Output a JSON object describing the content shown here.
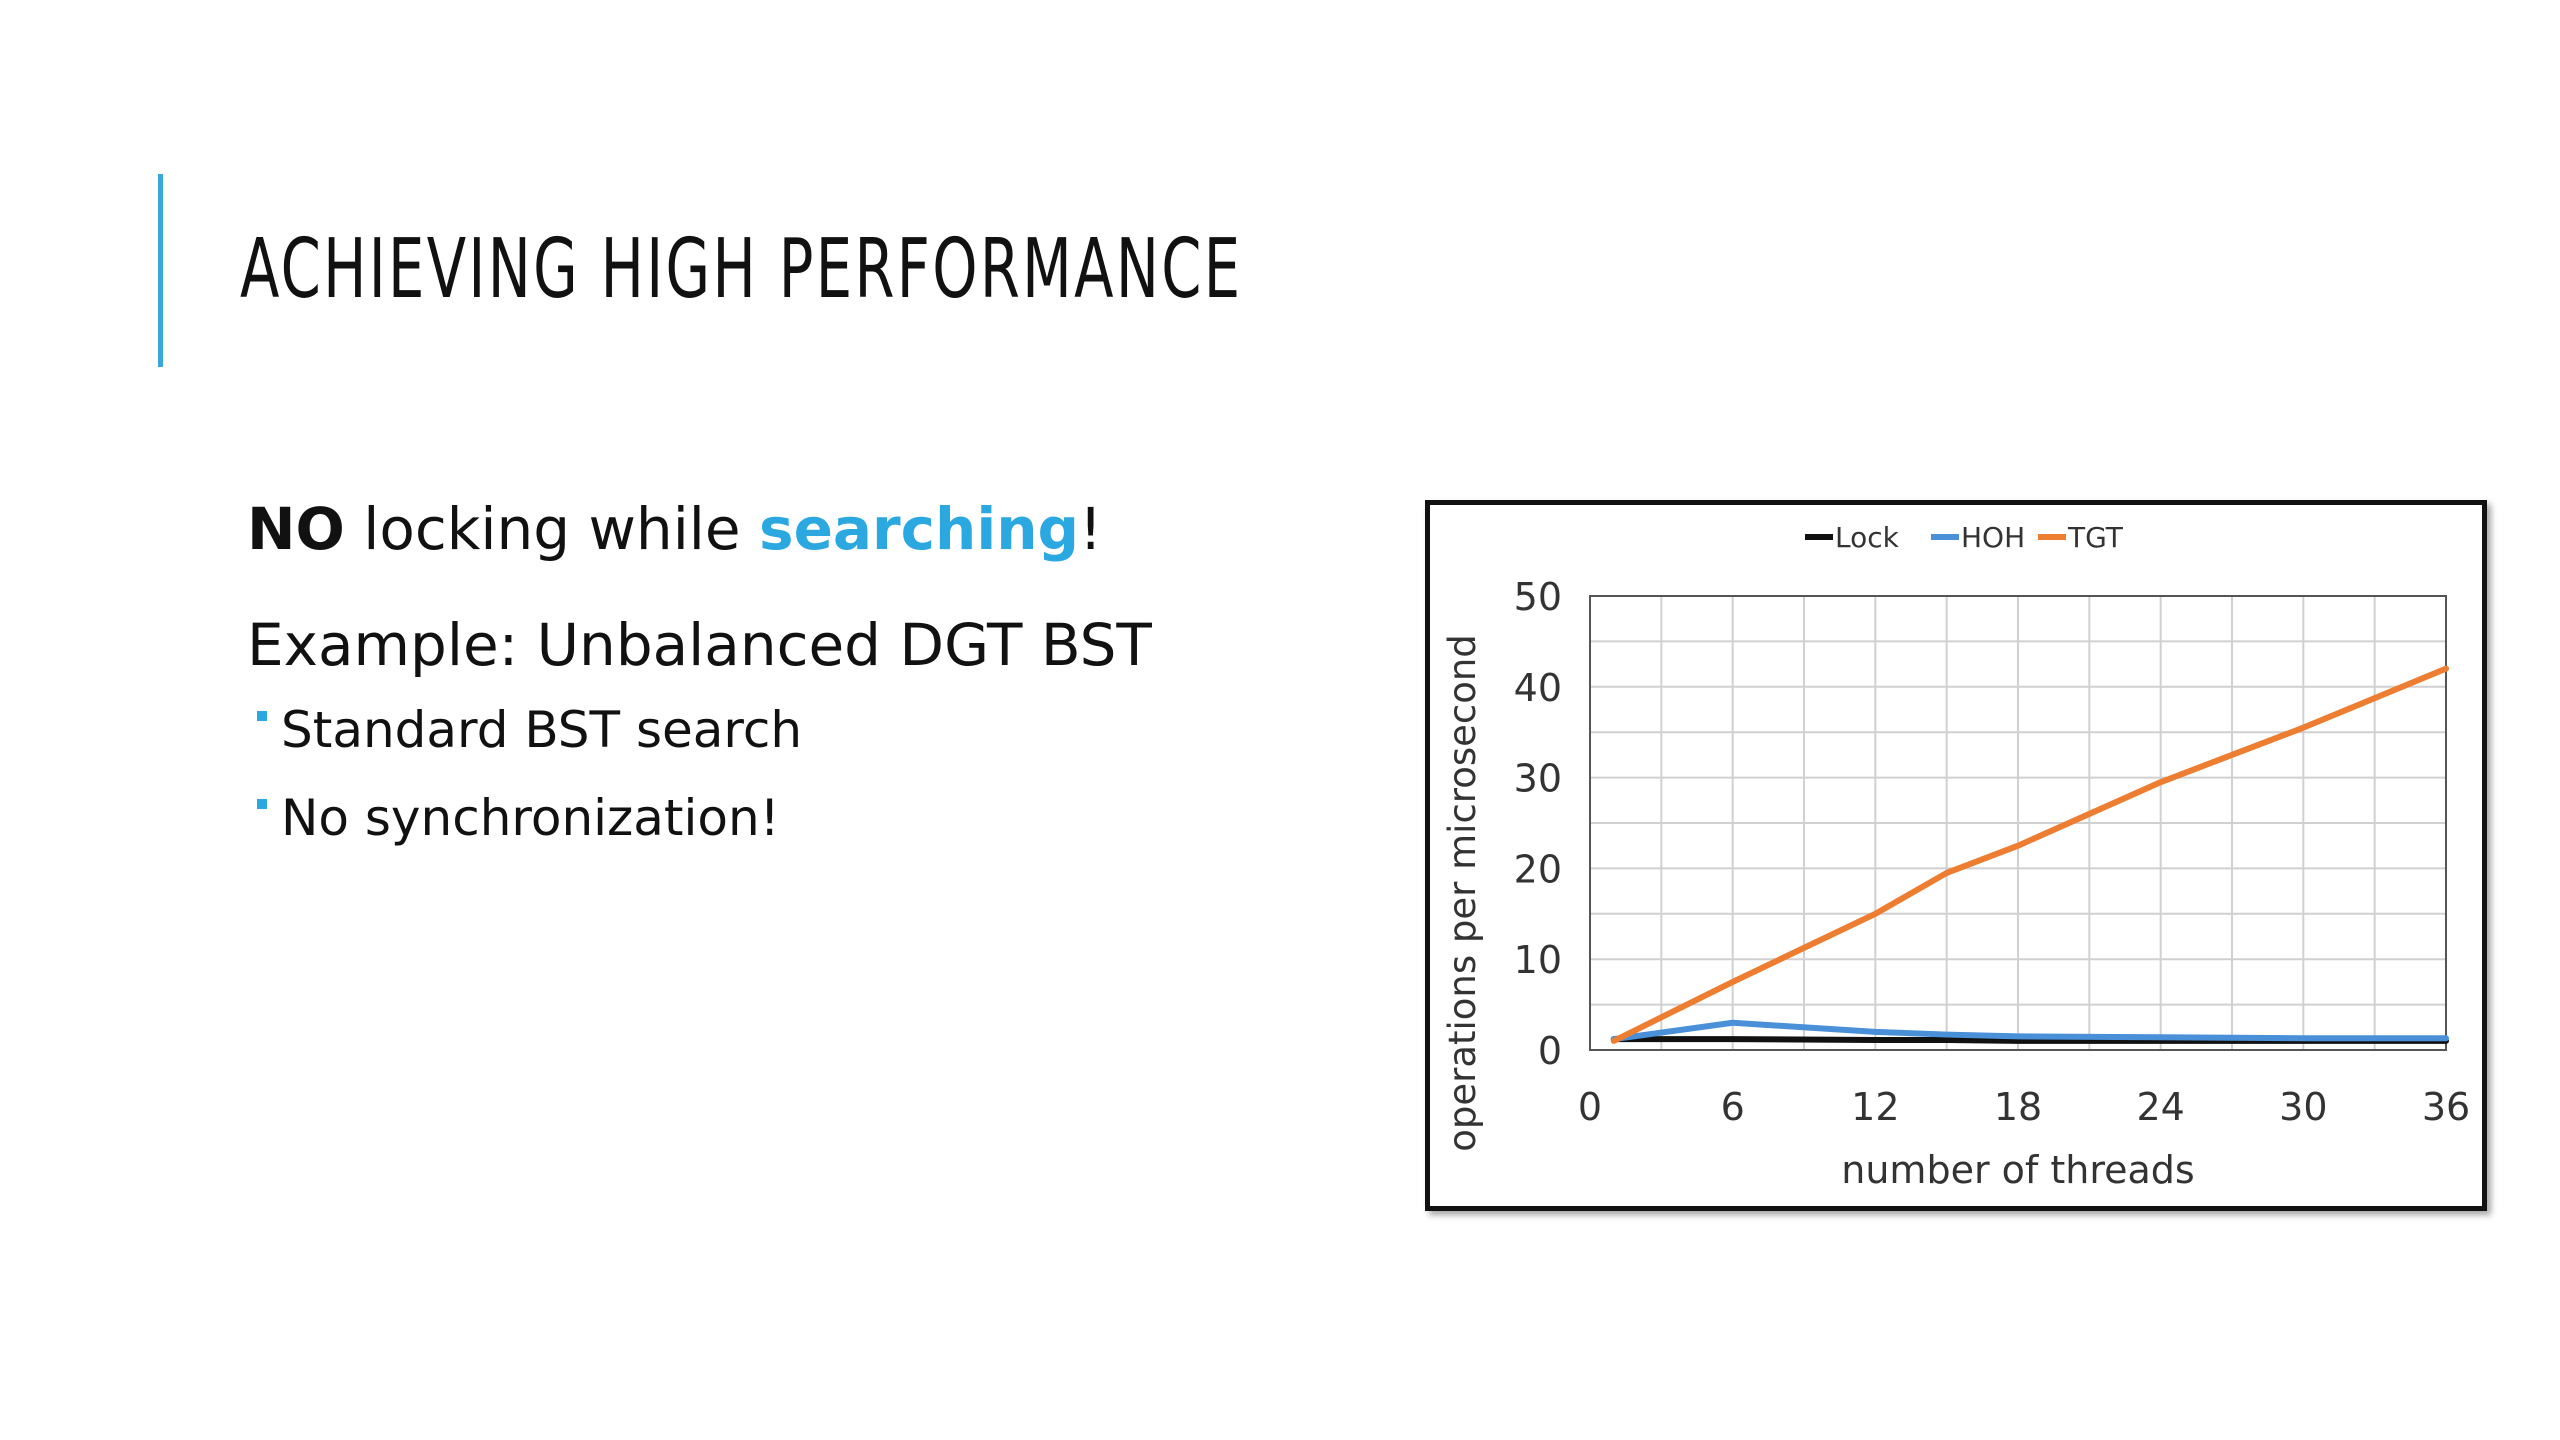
{
  "slide": {
    "title": "Achieving High Performance",
    "accent_color": "#3aa6dc",
    "highlight_color": "#2ca8e0",
    "line1": {
      "strong": "NO",
      "middle": " locking while ",
      "highlight": "searching",
      "end": "!"
    },
    "line2": "Example: Unbalanced DGT BST",
    "bullets": [
      "Standard BST search",
      "No synchronization!"
    ]
  },
  "chart_data": {
    "type": "line",
    "xlabel": "number of threads",
    "ylabel": "operations per microsecond",
    "xlim": [
      0,
      36
    ],
    "ylim": [
      0,
      50
    ],
    "x_ticks": [
      0,
      6,
      12,
      18,
      24,
      30,
      36
    ],
    "y_ticks": [
      0,
      10,
      20,
      30,
      40,
      50
    ],
    "grid": true,
    "legend_position": "top-center",
    "series": [
      {
        "name": "Lock",
        "color": "#111111",
        "x": [
          1,
          6,
          12,
          15,
          18,
          24,
          30,
          36
        ],
        "values": [
          1.2,
          1.2,
          1.1,
          1.1,
          1.0,
          1.0,
          1.0,
          1.0
        ]
      },
      {
        "name": "HOH",
        "color": "#4a90d9",
        "x": [
          1,
          6,
          12,
          15,
          18,
          24,
          30,
          36
        ],
        "values": [
          1.2,
          3.0,
          2.0,
          1.7,
          1.5,
          1.4,
          1.3,
          1.3
        ]
      },
      {
        "name": "TGT",
        "color": "#ed7d31",
        "x": [
          1,
          6,
          12,
          15,
          18,
          24,
          30,
          36
        ],
        "values": [
          1.0,
          7.5,
          15.0,
          19.5,
          22.5,
          29.5,
          35.5,
          42.0
        ]
      }
    ]
  }
}
